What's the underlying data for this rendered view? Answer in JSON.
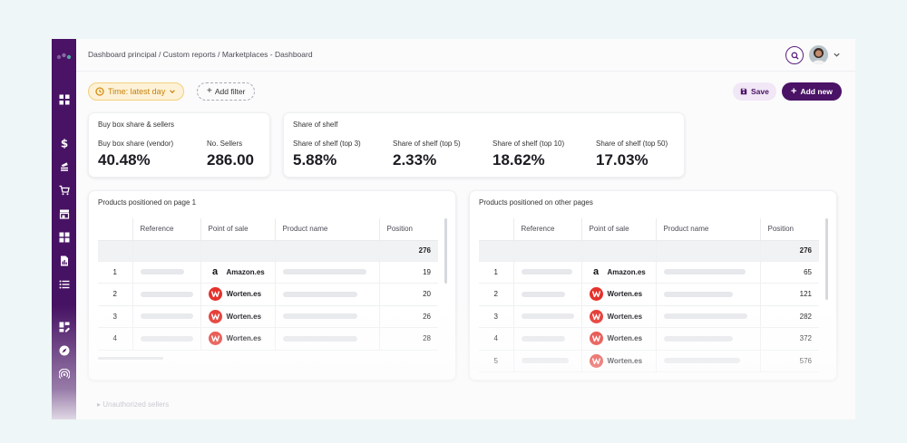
{
  "breadcrumb": "Dashboard principal / Custom reports / Marketplaces - Dashboard",
  "colors": {
    "brand": "#4a1366",
    "accent_orange": "#c7800b",
    "worten_red": "#e4322b"
  },
  "sidebar": {
    "logo": "brand-logo",
    "items": [
      {
        "icon": "grid-icon"
      },
      {
        "icon": "dollar-icon"
      },
      {
        "icon": "layers-icon"
      },
      {
        "icon": "cart-icon"
      },
      {
        "icon": "store-icon"
      },
      {
        "icon": "apps-icon"
      },
      {
        "icon": "file-chart-icon"
      },
      {
        "icon": "list-icon"
      },
      {
        "icon": "dashboard-edit-icon"
      },
      {
        "icon": "compass-icon"
      },
      {
        "icon": "broadcast-icon"
      }
    ]
  },
  "toolbar": {
    "time_label": "Time: latest day",
    "add_filter_label": "Add filter",
    "save_label": "Save",
    "add_new_label": "Add new"
  },
  "buybox": {
    "title": "Buy box share & sellers",
    "kpis": [
      {
        "label": "Buy box share (vendor)",
        "value": "40.48%"
      },
      {
        "label": "No. Sellers",
        "value": "286.00"
      }
    ]
  },
  "shelf": {
    "title": "Share of shelf",
    "kpis": [
      {
        "label": "Share of shelf (top 3)",
        "value": "5.88%"
      },
      {
        "label": "Share of shelf (top 5)",
        "value": "2.33%"
      },
      {
        "label": "Share of shelf (top 10)",
        "value": "18.62%"
      },
      {
        "label": "Share of shelf (top 50)",
        "value": "17.03%"
      }
    ]
  },
  "page1": {
    "title": "Products positioned on page 1",
    "headers": [
      "",
      "Reference",
      "Point of sale",
      "Product name",
      "Position"
    ],
    "total": "276",
    "rows": [
      {
        "idx": "1",
        "store": "Amazon.es",
        "logo": "amazon-logo-icon",
        "position": "19"
      },
      {
        "idx": "2",
        "store": "Worten.es",
        "logo": "worten-logo-icon",
        "position": "20"
      },
      {
        "idx": "3",
        "store": "Worten.es",
        "logo": "worten-logo-icon",
        "position": "26"
      },
      {
        "idx": "4",
        "store": "Worten.es",
        "logo": "worten-logo-icon",
        "position": "28"
      }
    ]
  },
  "otherpages": {
    "title": "Products positioned on other pages",
    "headers": [
      "",
      "Reference",
      "Point of sale",
      "Product name",
      "Position"
    ],
    "total": "276",
    "rows": [
      {
        "idx": "1",
        "store": "Amazon.es",
        "logo": "amazon-logo-icon",
        "position": "65"
      },
      {
        "idx": "2",
        "store": "Worten.es",
        "logo": "worten-logo-icon",
        "position": "121"
      },
      {
        "idx": "3",
        "store": "Worten.es",
        "logo": "worten-logo-icon",
        "position": "282"
      },
      {
        "idx": "4",
        "store": "Worten.es",
        "logo": "worten-logo-icon",
        "position": "372"
      },
      {
        "idx": "5",
        "store": "Worten.es",
        "logo": "worten-logo-icon",
        "position": "576"
      }
    ]
  },
  "unauthorized": {
    "label": "Unauthorized sellers"
  }
}
